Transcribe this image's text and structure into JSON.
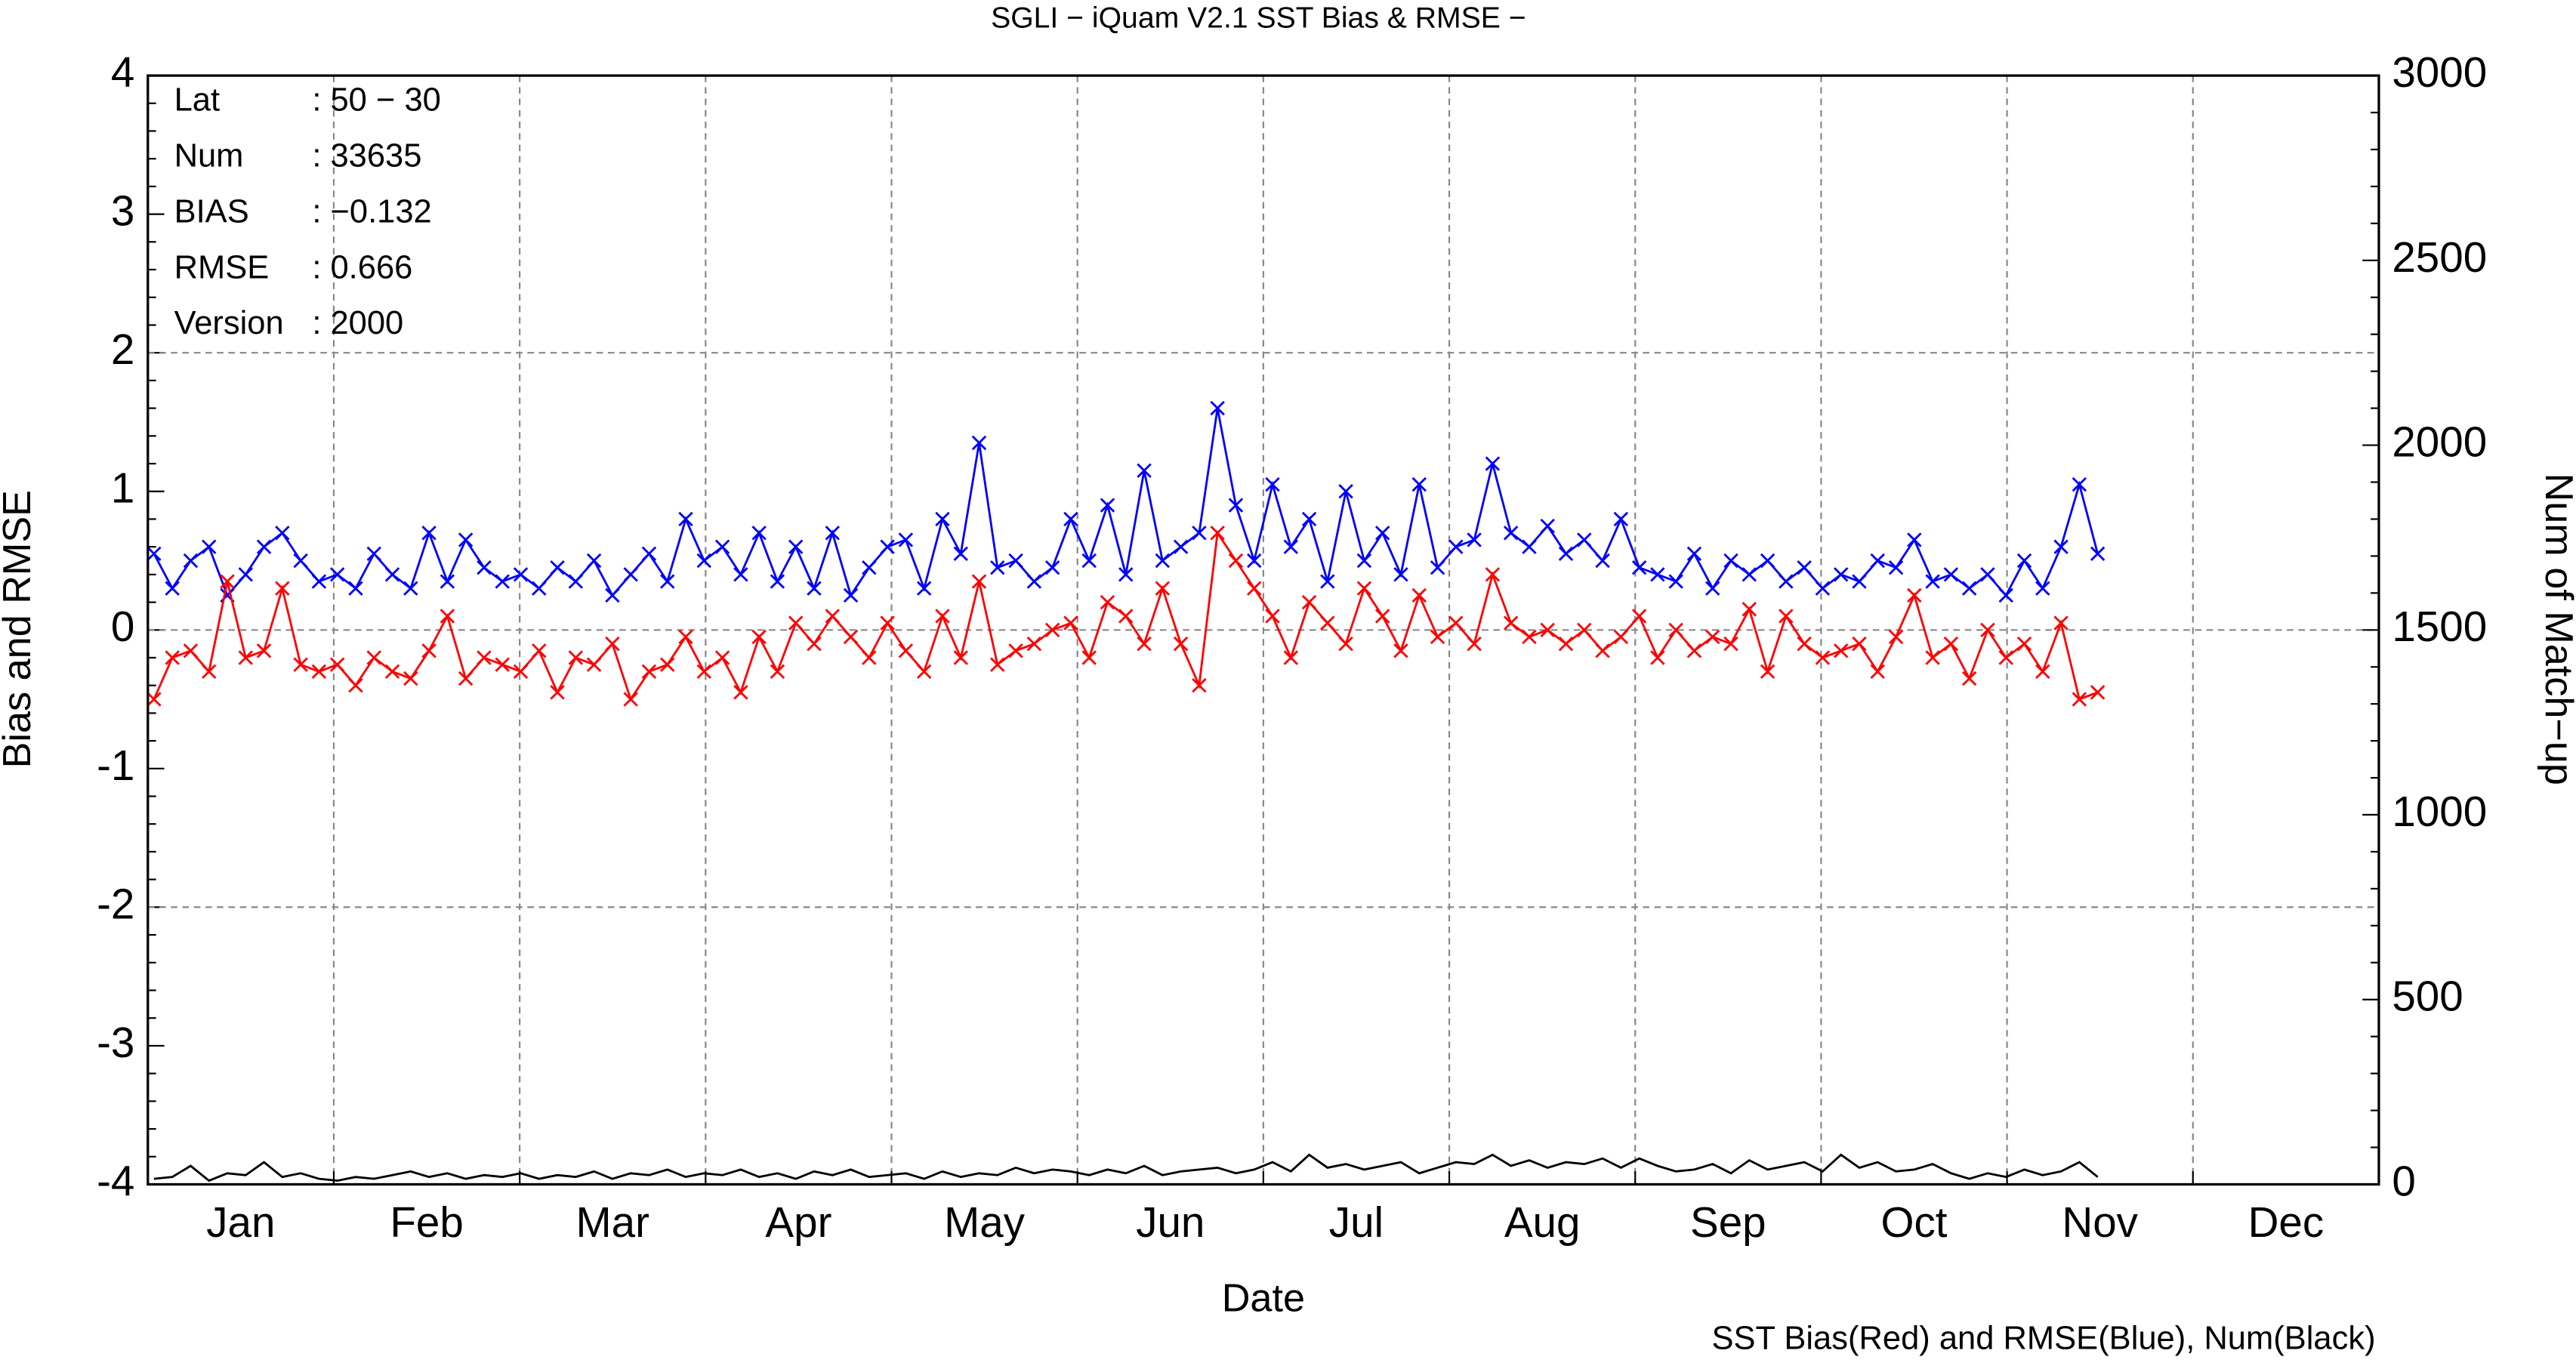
{
  "chart_data": {
    "type": "line",
    "title": "SGLI − iQuam V2.1 SST Bias & RMSE  −",
    "xlabel": "Date",
    "ylabel": "Bias and RMSE",
    "y2label": "Num of Match−up",
    "footnote": "SST Bias(Red) and RMSE(Blue), Num(Black)",
    "info": [
      [
        "Lat",
        ": 50 − 30"
      ],
      [
        "Num",
        ": 33635"
      ],
      [
        "BIAS",
        ": −0.132"
      ],
      [
        "RMSE",
        ": 0.666"
      ],
      [
        "Version",
        ": 2000"
      ]
    ],
    "categories": [
      "Jan",
      "Feb",
      "Mar",
      "Apr",
      "May",
      "Jun",
      "Jul",
      "Aug",
      "Sep",
      "Oct",
      "Nov",
      "Dec"
    ],
    "xlim": [
      0,
      365
    ],
    "ylim": [
      -4,
      4
    ],
    "yticks": [
      -4,
      -3,
      -2,
      -1,
      0,
      1,
      2,
      3,
      4
    ],
    "y2lim": [
      0,
      3000
    ],
    "y2ticks": [
      0,
      500,
      1000,
      1500,
      2000,
      2500,
      3000
    ],
    "grid": true,
    "x": [
      1,
      4,
      7,
      10,
      13,
      16,
      19,
      22,
      25,
      28,
      31,
      34,
      37,
      40,
      43,
      46,
      49,
      52,
      55,
      58,
      61,
      64,
      67,
      70,
      73,
      76,
      79,
      82,
      85,
      88,
      91,
      94,
      97,
      100,
      103,
      106,
      109,
      112,
      115,
      118,
      121,
      124,
      127,
      130,
      133,
      136,
      139,
      142,
      145,
      148,
      151,
      154,
      157,
      160,
      163,
      166,
      169,
      172,
      175,
      178,
      181,
      184,
      187,
      190,
      193,
      196,
      199,
      202,
      205,
      208,
      211,
      214,
      217,
      220,
      223,
      226,
      229,
      232,
      235,
      238,
      241,
      244,
      247,
      250,
      253,
      256,
      259,
      262,
      265,
      268,
      271,
      274,
      277,
      280,
      283,
      286,
      289,
      292,
      295,
      298,
      301,
      304,
      307,
      310,
      313,
      316,
      319
    ],
    "series": [
      {
        "name": "RMSE",
        "color": "#0000ff",
        "marker": "x",
        "values": [
          0.55,
          0.3,
          0.5,
          0.6,
          0.25,
          0.4,
          0.6,
          0.7,
          0.5,
          0.35,
          0.4,
          0.3,
          0.55,
          0.4,
          0.3,
          0.7,
          0.35,
          0.65,
          0.45,
          0.35,
          0.4,
          0.3,
          0.45,
          0.35,
          0.5,
          0.25,
          0.4,
          0.55,
          0.35,
          0.8,
          0.5,
          0.6,
          0.4,
          0.7,
          0.35,
          0.6,
          0.3,
          0.7,
          0.25,
          0.45,
          0.6,
          0.65,
          0.3,
          0.8,
          0.55,
          1.35,
          0.45,
          0.5,
          0.35,
          0.45,
          0.8,
          0.5,
          0.9,
          0.4,
          1.15,
          0.5,
          0.6,
          0.7,
          1.6,
          0.9,
          0.5,
          1.05,
          0.6,
          0.8,
          0.35,
          1.0,
          0.5,
          0.7,
          0.4,
          1.05,
          0.45,
          0.6,
          0.65,
          1.2,
          0.7,
          0.6,
          0.75,
          0.55,
          0.65,
          0.5,
          0.8,
          0.45,
          0.4,
          0.35,
          0.55,
          0.3,
          0.5,
          0.4,
          0.5,
          0.35,
          0.45,
          0.3,
          0.4,
          0.35,
          0.5,
          0.45,
          0.65,
          0.35,
          0.4,
          0.3,
          0.4,
          0.25,
          0.5,
          0.3,
          0.6,
          1.05,
          0.55
        ]
      },
      {
        "name": "Bias",
        "color": "#ff0000",
        "marker": "x",
        "values": [
          -0.5,
          -0.2,
          -0.15,
          -0.3,
          0.35,
          -0.2,
          -0.15,
          0.3,
          -0.25,
          -0.3,
          -0.25,
          -0.4,
          -0.2,
          -0.3,
          -0.35,
          -0.15,
          0.1,
          -0.35,
          -0.2,
          -0.25,
          -0.3,
          -0.15,
          -0.45,
          -0.2,
          -0.25,
          -0.1,
          -0.5,
          -0.3,
          -0.25,
          -0.05,
          -0.3,
          -0.2,
          -0.45,
          -0.05,
          -0.3,
          0.05,
          -0.1,
          0.1,
          -0.05,
          -0.2,
          0.05,
          -0.15,
          -0.3,
          0.1,
          -0.2,
          0.35,
          -0.25,
          -0.15,
          -0.1,
          0.0,
          0.05,
          -0.2,
          0.2,
          0.1,
          -0.1,
          0.3,
          -0.1,
          -0.4,
          0.7,
          0.5,
          0.3,
          0.1,
          -0.2,
          0.2,
          0.05,
          -0.1,
          0.3,
          0.1,
          -0.15,
          0.25,
          -0.05,
          0.05,
          -0.1,
          0.4,
          0.05,
          -0.05,
          0.0,
          -0.1,
          0.0,
          -0.15,
          -0.05,
          0.1,
          -0.2,
          0.0,
          -0.15,
          -0.05,
          -0.1,
          0.15,
          -0.3,
          0.1,
          -0.1,
          -0.2,
          -0.15,
          -0.1,
          -0.3,
          -0.05,
          0.25,
          -0.2,
          -0.1,
          -0.35,
          0.0,
          -0.2,
          -0.1,
          -0.3,
          0.05,
          -0.5,
          -0.45
        ]
      },
      {
        "name": "Num",
        "color": "#000000",
        "axis": "y2",
        "values": [
          15,
          20,
          50,
          10,
          30,
          25,
          60,
          20,
          30,
          15,
          10,
          20,
          15,
          25,
          35,
          20,
          30,
          15,
          25,
          20,
          30,
          15,
          25,
          20,
          35,
          15,
          30,
          25,
          40,
          20,
          30,
          25,
          40,
          20,
          30,
          15,
          35,
          25,
          40,
          20,
          25,
          30,
          15,
          35,
          20,
          30,
          25,
          45,
          30,
          40,
          35,
          25,
          40,
          30,
          50,
          25,
          35,
          40,
          45,
          30,
          40,
          60,
          35,
          80,
          45,
          55,
          40,
          50,
          60,
          30,
          45,
          60,
          55,
          80,
          50,
          65,
          45,
          60,
          55,
          70,
          45,
          70,
          50,
          35,
          40,
          55,
          30,
          65,
          40,
          50,
          60,
          35,
          80,
          45,
          60,
          35,
          40,
          55,
          30,
          15,
          30,
          20,
          40,
          25,
          35,
          60,
          20
        ]
      }
    ]
  }
}
